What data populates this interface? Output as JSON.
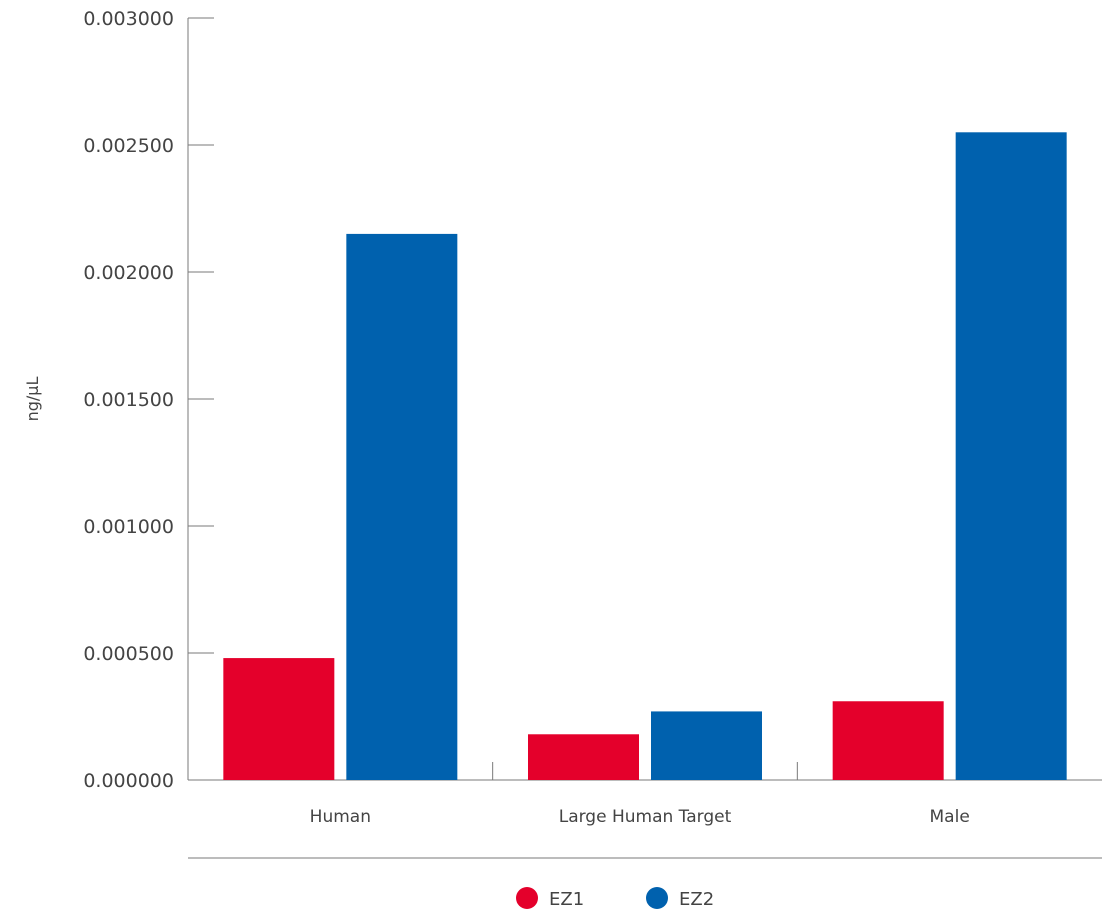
{
  "chart_data": {
    "type": "bar",
    "categories": [
      "Human",
      "Large Human Target",
      "Male"
    ],
    "series": [
      {
        "name": "EZ1",
        "color": "#E4002B",
        "values": [
          0.00048,
          0.00018,
          0.00031
        ]
      },
      {
        "name": "EZ2",
        "color": "#0061AE",
        "values": [
          0.00215,
          0.00027,
          0.00255
        ]
      }
    ],
    "yticks": [
      "0.000000",
      "0.000500",
      "0.001000",
      "0.001500",
      "0.002000",
      "0.002500",
      "0.003000"
    ],
    "ylabel": "ng/µL",
    "xlabel": "",
    "title": "",
    "ylim": [
      0,
      0.003
    ],
    "legend_position": "bottom-center",
    "grid": false
  }
}
